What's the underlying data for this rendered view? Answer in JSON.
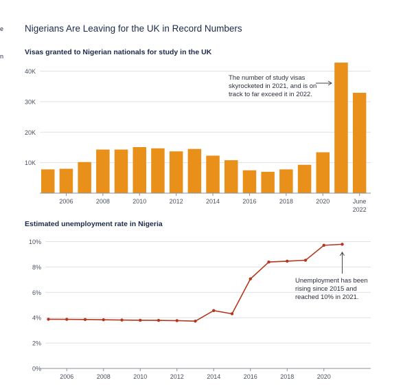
{
  "edge_fragments": [
    "e",
    "n"
  ],
  "title": "Nigerians Are Leaving for the UK in Record Numbers",
  "chart_data": [
    {
      "type": "bar",
      "title": "Visas granted to Nigerian nationals for study in the UK",
      "categories": [
        "2005",
        "2006",
        "2007",
        "2008",
        "2009",
        "2010",
        "2011",
        "2012",
        "2013",
        "2014",
        "2015",
        "2016",
        "2017",
        "2018",
        "2019",
        "2020",
        "2021",
        "June 2022"
      ],
      "values": [
        7800,
        8000,
        10200,
        14300,
        14300,
        15100,
        14700,
        13700,
        14500,
        12300,
        10800,
        7500,
        7000,
        7800,
        9300,
        13400,
        42800,
        32900
      ],
      "x_tick_labels": [
        "2006",
        "2008",
        "2010",
        "2012",
        "2014",
        "2016",
        "2018",
        "2020"
      ],
      "last_tick_label": [
        "June",
        "2022"
      ],
      "y_ticks": [
        10000,
        20000,
        30000,
        40000
      ],
      "y_tick_labels": [
        "10K",
        "20K",
        "30K",
        "40K"
      ],
      "ylim": [
        0,
        45000
      ],
      "grid": true,
      "color": "#e8901a",
      "annotation": [
        "The number of study visas",
        "skyrocketed in 2021, and is on",
        "track to far exceed it in 2022."
      ]
    },
    {
      "type": "line",
      "title": "Estimated unemployment rate in Nigeria",
      "x": [
        2005,
        2006,
        2007,
        2008,
        2009,
        2010,
        2011,
        2012,
        2013,
        2014,
        2015,
        2016,
        2017,
        2018,
        2019,
        2020,
        2021
      ],
      "values": [
        3.88,
        3.87,
        3.86,
        3.84,
        3.82,
        3.8,
        3.79,
        3.77,
        3.73,
        4.56,
        4.31,
        7.06,
        8.39,
        8.46,
        8.53,
        9.71,
        9.79
      ],
      "x_tick_labels": [
        "2006",
        "2008",
        "2010",
        "2012",
        "2014",
        "2016",
        "2018",
        "2020"
      ],
      "y_ticks": [
        0,
        2,
        4,
        6,
        8,
        10
      ],
      "y_tick_labels": [
        "0%",
        "2%",
        "4%",
        "6%",
        "8%",
        "10%"
      ],
      "ylim": [
        0,
        10
      ],
      "grid": true,
      "color": "#b5361e",
      "annotation": [
        "Unemployment has been",
        "rising since 2015 and",
        "reached 10% in 2021."
      ]
    }
  ]
}
